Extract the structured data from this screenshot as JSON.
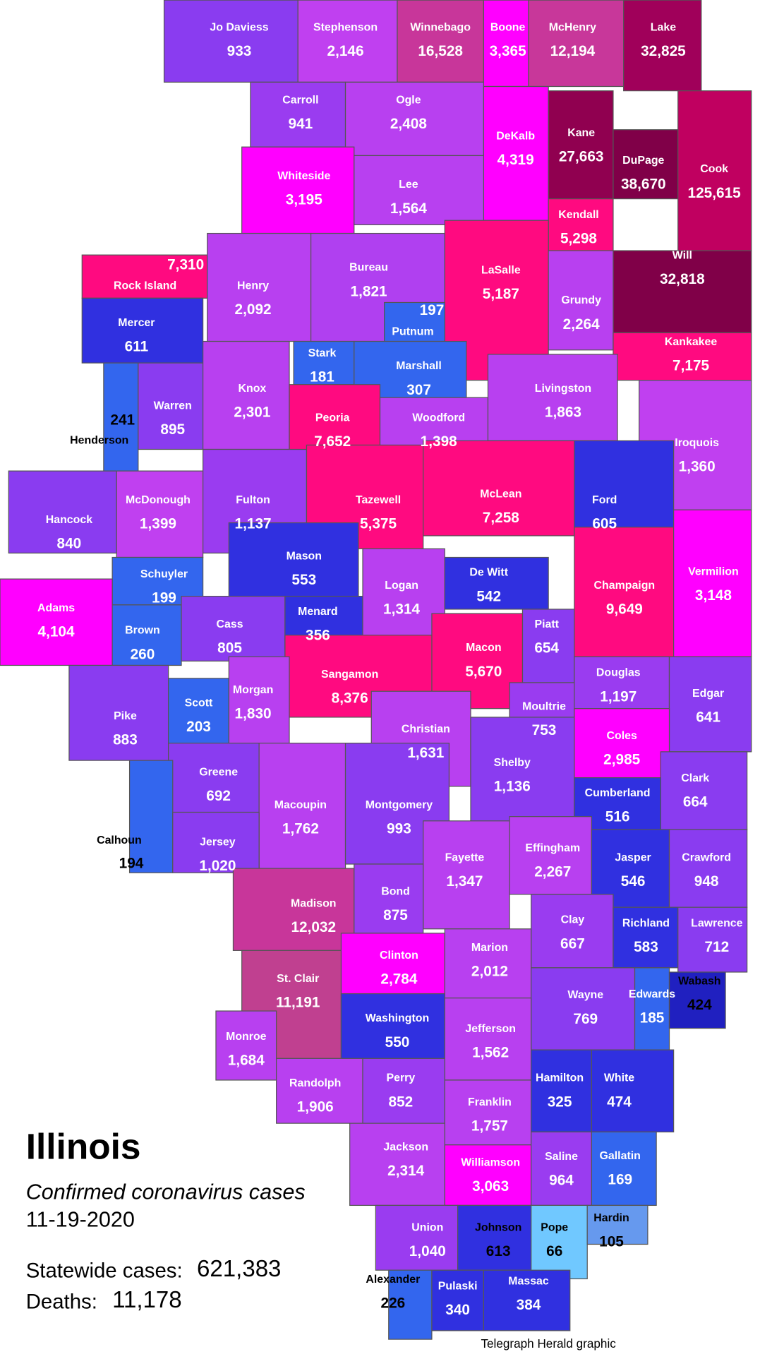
{
  "title": "Illinois",
  "subtitle": "Confirmed coronavirus cases",
  "date": "11-19-2020",
  "statewide": {
    "label": "Statewide cases:",
    "value": "621,383"
  },
  "deaths": {
    "label": "Deaths:",
    "value": "11,178"
  },
  "credit": "Telegraph Herald graphic",
  "counties": [
    {
      "name": "Jo Daviess",
      "cases": "933",
      "color": "#8a3cf0"
    },
    {
      "name": "Stephenson",
      "cases": "2,146",
      "color": "#c040f0"
    },
    {
      "name": "Winnebago",
      "cases": "16,528",
      "color": "#c8369a"
    },
    {
      "name": "Boone",
      "cases": "3,365",
      "color": "#ff00ff"
    },
    {
      "name": "McHenry",
      "cases": "12,194",
      "color": "#c8379a"
    },
    {
      "name": "Lake",
      "cases": "32,825",
      "color": "#a0005a"
    },
    {
      "name": "Carroll",
      "cases": "941",
      "color": "#9a3cf0"
    },
    {
      "name": "Ogle",
      "cases": "2,408",
      "color": "#b840f0"
    },
    {
      "name": "DeKalb",
      "cases": "4,319",
      "color": "#ff00ff"
    },
    {
      "name": "Kane",
      "cases": "27,663",
      "color": "#900050"
    },
    {
      "name": "DuPage",
      "cases": "38,670",
      "color": "#800048"
    },
    {
      "name": "Cook",
      "cases": "125,615",
      "color": "#c00060"
    },
    {
      "name": "Whiteside",
      "cases": "3,195",
      "color": "#ff00ff"
    },
    {
      "name": "Lee",
      "cases": "1,564",
      "color": "#b840f0"
    },
    {
      "name": "Kendall",
      "cases": "5,298",
      "color": "#ff0a80"
    },
    {
      "name": "Rock Island",
      "cases": "7,310",
      "color": "#ff0a80"
    },
    {
      "name": "Henry",
      "cases": "2,092",
      "color": "#b840f0"
    },
    {
      "name": "Bureau",
      "cases": "1,821",
      "color": "#b040f0"
    },
    {
      "name": "LaSalle",
      "cases": "5,187",
      "color": "#ff0a80"
    },
    {
      "name": "Will",
      "cases": "32,818",
      "color": "#800048"
    },
    {
      "name": "Grundy",
      "cases": "2,264",
      "color": "#b840f0"
    },
    {
      "name": "Putnum",
      "cases": "197",
      "color": "#3366ee"
    },
    {
      "name": "Mercer",
      "cases": "611",
      "color": "#3030e0"
    },
    {
      "name": "Stark",
      "cases": "181",
      "color": "#3366ee"
    },
    {
      "name": "Marshall",
      "cases": "307",
      "color": "#3366ee"
    },
    {
      "name": "Kankakee",
      "cases": "7,175",
      "color": "#ff0a80"
    },
    {
      "name": "Henderson",
      "cases": "241",
      "color": "#3366ee"
    },
    {
      "name": "Warren",
      "cases": "895",
      "color": "#8a3cf0"
    },
    {
      "name": "Knox",
      "cases": "2,301",
      "color": "#b840f0"
    },
    {
      "name": "Peoria",
      "cases": "7,652",
      "color": "#ff0a80"
    },
    {
      "name": "Woodford",
      "cases": "1,398",
      "color": "#b840f0"
    },
    {
      "name": "Livingston",
      "cases": "1,863",
      "color": "#b840f0"
    },
    {
      "name": "Iroquois",
      "cases": "1,360",
      "color": "#c040f0"
    },
    {
      "name": "Ford",
      "cases": "605",
      "color": "#3030e0"
    },
    {
      "name": "Hancock",
      "cases": "840",
      "color": "#8a3cf0"
    },
    {
      "name": "McDonough",
      "cases": "1,399",
      "color": "#c040f0"
    },
    {
      "name": "Fulton",
      "cases": "1,137",
      "color": "#9a3cf0"
    },
    {
      "name": "Tazewell",
      "cases": "5,375",
      "color": "#ff0a80"
    },
    {
      "name": "McLean",
      "cases": "7,258",
      "color": "#ff0a80"
    },
    {
      "name": "Mason",
      "cases": "553",
      "color": "#3030e0"
    },
    {
      "name": "Schuyler",
      "cases": "199",
      "color": "#3366ee"
    },
    {
      "name": "Adams",
      "cases": "4,104",
      "color": "#ff00ff"
    },
    {
      "name": "Brown",
      "cases": "260",
      "color": "#3366ee"
    },
    {
      "name": "Cass",
      "cases": "805",
      "color": "#8a3cf0"
    },
    {
      "name": "Menard",
      "cases": "356",
      "color": "#3030e0"
    },
    {
      "name": "Logan",
      "cases": "1,314",
      "color": "#b840f0"
    },
    {
      "name": "De Witt",
      "cases": "542",
      "color": "#3030e0"
    },
    {
      "name": "Champaign",
      "cases": "9,649",
      "color": "#ff0a80"
    },
    {
      "name": "Vermilion",
      "cases": "3,148",
      "color": "#ff00ff"
    },
    {
      "name": "Piatt",
      "cases": "654",
      "color": "#8a3cf0"
    },
    {
      "name": "Macon",
      "cases": "5,670",
      "color": "#ff0a80"
    },
    {
      "name": "Sangamon",
      "cases": "8,376",
      "color": "#ff0a80"
    },
    {
      "name": "Pike",
      "cases": "883",
      "color": "#8a3cf0"
    },
    {
      "name": "Scott",
      "cases": "203",
      "color": "#3366ee"
    },
    {
      "name": "Morgan",
      "cases": "1,830",
      "color": "#b840f0"
    },
    {
      "name": "Douglas",
      "cases": "1,197",
      "color": "#9a3cf0"
    },
    {
      "name": "Edgar",
      "cases": "641",
      "color": "#8a3cf0"
    },
    {
      "name": "Moultrie",
      "cases": "753",
      "color": "#9a3cf0"
    },
    {
      "name": "Christian",
      "cases": "1,631",
      "color": "#b840f0"
    },
    {
      "name": "Coles",
      "cases": "2,985",
      "color": "#ff00ff"
    },
    {
      "name": "Shelby",
      "cases": "1,136",
      "color": "#8a3cf0"
    },
    {
      "name": "Greene",
      "cases": "692",
      "color": "#8a3cf0"
    },
    {
      "name": "Clark",
      "cases": "664",
      "color": "#8a3cf0"
    },
    {
      "name": "Cumberland",
      "cases": "516",
      "color": "#3030e0"
    },
    {
      "name": "Macoupin",
      "cases": "1,762",
      "color": "#b840f0"
    },
    {
      "name": "Montgomery",
      "cases": "993",
      "color": "#8a3cf0"
    },
    {
      "name": "Calhoun",
      "cases": "194",
      "color": "#3366ee"
    },
    {
      "name": "Jersey",
      "cases": "1,020",
      "color": "#8a3cf0"
    },
    {
      "name": "Fayette",
      "cases": "1,347",
      "color": "#b840f0"
    },
    {
      "name": "Effingham",
      "cases": "2,267",
      "color": "#b840f0"
    },
    {
      "name": "Jasper",
      "cases": "546",
      "color": "#3030e0"
    },
    {
      "name": "Crawford",
      "cases": "948",
      "color": "#8a3cf0"
    },
    {
      "name": "Madison",
      "cases": "12,032",
      "color": "#c8369a"
    },
    {
      "name": "Bond",
      "cases": "875",
      "color": "#9a3cf0"
    },
    {
      "name": "Clay",
      "cases": "667",
      "color": "#9a3cf0"
    },
    {
      "name": "Richland",
      "cases": "583",
      "color": "#3030e0"
    },
    {
      "name": "Lawrence",
      "cases": "712",
      "color": "#8a3cf0"
    },
    {
      "name": "Clinton",
      "cases": "2,784",
      "color": "#ff00ff"
    },
    {
      "name": "Marion",
      "cases": "2,012",
      "color": "#b840f0"
    },
    {
      "name": "St. Clair",
      "cases": "11,191",
      "color": "#c04090"
    },
    {
      "name": "Wayne",
      "cases": "769",
      "color": "#8a3cf0"
    },
    {
      "name": "Edwards",
      "cases": "185",
      "color": "#3366ee"
    },
    {
      "name": "Wabash",
      "cases": "424",
      "color": "#2020c0"
    },
    {
      "name": "Washington",
      "cases": "550",
      "color": "#3030e0"
    },
    {
      "name": "Jefferson",
      "cases": "1,562",
      "color": "#b840f0"
    },
    {
      "name": "Monroe",
      "cases": "1,684",
      "color": "#b840f0"
    },
    {
      "name": "Randolph",
      "cases": "1,906",
      "color": "#b840f0"
    },
    {
      "name": "Perry",
      "cases": "852",
      "color": "#9a3cf0"
    },
    {
      "name": "Franklin",
      "cases": "1,757",
      "color": "#b840f0"
    },
    {
      "name": "Hamilton",
      "cases": "325",
      "color": "#3030e0"
    },
    {
      "name": "White",
      "cases": "474",
      "color": "#3030e0"
    },
    {
      "name": "Jackson",
      "cases": "2,314",
      "color": "#b840f0"
    },
    {
      "name": "Williamson",
      "cases": "3,063",
      "color": "#ff00ff"
    },
    {
      "name": "Saline",
      "cases": "964",
      "color": "#9a3cf0"
    },
    {
      "name": "Gallatin",
      "cases": "169",
      "color": "#3366ee"
    },
    {
      "name": "Union",
      "cases": "1,040",
      "color": "#9a3cf0"
    },
    {
      "name": "Johnson",
      "cases": "613",
      "color": "#3030e0"
    },
    {
      "name": "Pope",
      "cases": "66",
      "color": "#70c8ff"
    },
    {
      "name": "Hardin",
      "cases": "105",
      "color": "#6699ee"
    },
    {
      "name": "Alexander",
      "cases": "226",
      "color": "#3366ee"
    },
    {
      "name": "Pulaski",
      "cases": "340",
      "color": "#3030e0"
    },
    {
      "name": "Massac",
      "cases": "384",
      "color": "#3030e0"
    }
  ]
}
